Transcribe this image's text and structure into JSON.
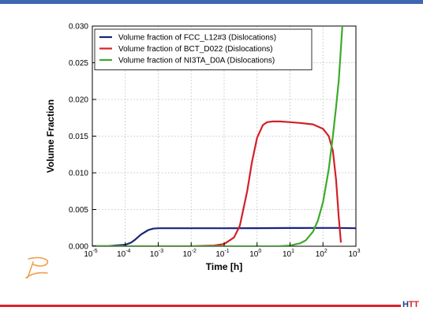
{
  "brand": {
    "top_bar_color": "#3f67b1",
    "rule_color": "#d9242a",
    "hit_prefix": "H",
    "hit_suffix": "TT",
    "hit_prefix_color": "#1b3f8f",
    "hit_suffix_color": "#d9242a",
    "logo_color": "#f0a050"
  },
  "chart_data": {
    "type": "line",
    "title": "",
    "xlabel": "Time [h]",
    "ylabel": "Volume Fraction",
    "xscale": "log",
    "xlim": [
      1e-05,
      1000
    ],
    "ylim": [
      0,
      0.03
    ],
    "grid": true,
    "legend_position": "top-left",
    "x_ticks": [
      {
        "base": "10",
        "exp": "-5"
      },
      {
        "base": "10",
        "exp": "-4"
      },
      {
        "base": "10",
        "exp": "-3"
      },
      {
        "base": "10",
        "exp": "-2"
      },
      {
        "base": "10",
        "exp": "-1"
      },
      {
        "base": "10",
        "exp": "0"
      },
      {
        "base": "10",
        "exp": "1"
      },
      {
        "base": "10",
        "exp": "2"
      },
      {
        "base": "10",
        "exp": "3"
      }
    ],
    "y_ticks": [
      "0.000",
      "0.005",
      "0.010",
      "0.015",
      "0.020",
      "0.025",
      "0.030"
    ],
    "series": [
      {
        "name": "Volume fraction of FCC_L12#3 (Dislocations)",
        "color": "#1a237e",
        "x": [
          1e-05,
          3e-05,
          0.0001,
          0.00015,
          0.0002,
          0.0003,
          0.0005,
          0.0007,
          0.001,
          0.0015,
          0.01,
          0.1,
          1,
          10,
          100,
          300,
          1000
        ],
        "y": [
          0.0,
          2e-05,
          0.0002,
          0.0005,
          0.0009,
          0.0016,
          0.0022,
          0.0024,
          0.00245,
          0.00245,
          0.00245,
          0.00245,
          0.00246,
          0.00248,
          0.0025,
          0.0025,
          0.00245
        ]
      },
      {
        "name": "Volume fraction of BCT_D022 (Dislocations)",
        "color": "#d32027",
        "x": [
          1e-05,
          0.01,
          0.05,
          0.1,
          0.2,
          0.3,
          0.5,
          0.7,
          1,
          1.5,
          2,
          3,
          5,
          10,
          20,
          50,
          100,
          150,
          200,
          250,
          300,
          350
        ],
        "y": [
          0.0,
          0.0,
          0.0001,
          0.0003,
          0.0012,
          0.0028,
          0.0075,
          0.0115,
          0.0148,
          0.0165,
          0.0169,
          0.017,
          0.017,
          0.0169,
          0.0168,
          0.0166,
          0.016,
          0.015,
          0.013,
          0.009,
          0.004,
          0.0005
        ]
      },
      {
        "name": "Volume fraction of NI3TA_D0A (Dislocations)",
        "color": "#3daa2c",
        "x": [
          1e-05,
          1,
          5,
          10,
          20,
          30,
          50,
          70,
          100,
          150,
          200,
          250,
          300,
          350,
          400
        ],
        "y": [
          0.0,
          0.0,
          2e-05,
          0.0001,
          0.0004,
          0.0008,
          0.002,
          0.0035,
          0.006,
          0.0105,
          0.015,
          0.019,
          0.0225,
          0.027,
          0.031
        ]
      }
    ]
  }
}
